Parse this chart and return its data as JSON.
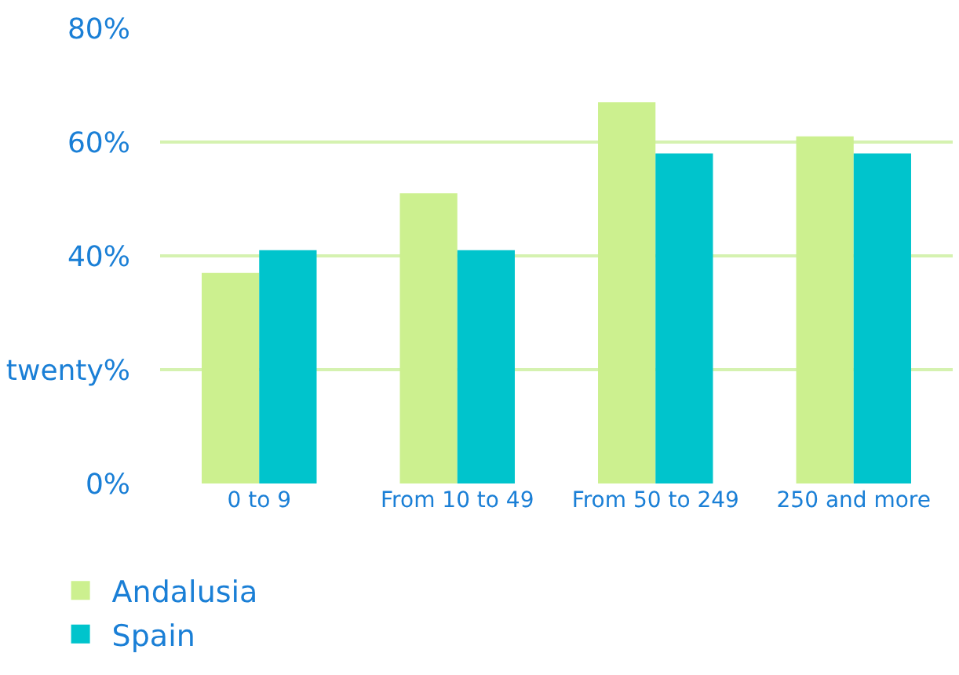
{
  "chart_data": {
    "type": "bar",
    "categories": [
      "0 to 9",
      "From 10 to 49",
      "From 50 to 249",
      "250 and more"
    ],
    "series": [
      {
        "name": "Andalusia",
        "color": "#ccf08f",
        "values": [
          37,
          51,
          67,
          61
        ]
      },
      {
        "name": "Spain",
        "color": "#00c4cc",
        "values": [
          41,
          41,
          58,
          58
        ]
      }
    ],
    "ylim": [
      0,
      80
    ],
    "yticks": [
      {
        "value": 0,
        "label": "0%"
      },
      {
        "value": 20,
        "label": "twenty%"
      },
      {
        "value": 40,
        "label": "40%"
      },
      {
        "value": 60,
        "label": "60%"
      },
      {
        "value": 80,
        "label": "80%"
      }
    ],
    "grid": "y",
    "legend": "bottom left"
  }
}
